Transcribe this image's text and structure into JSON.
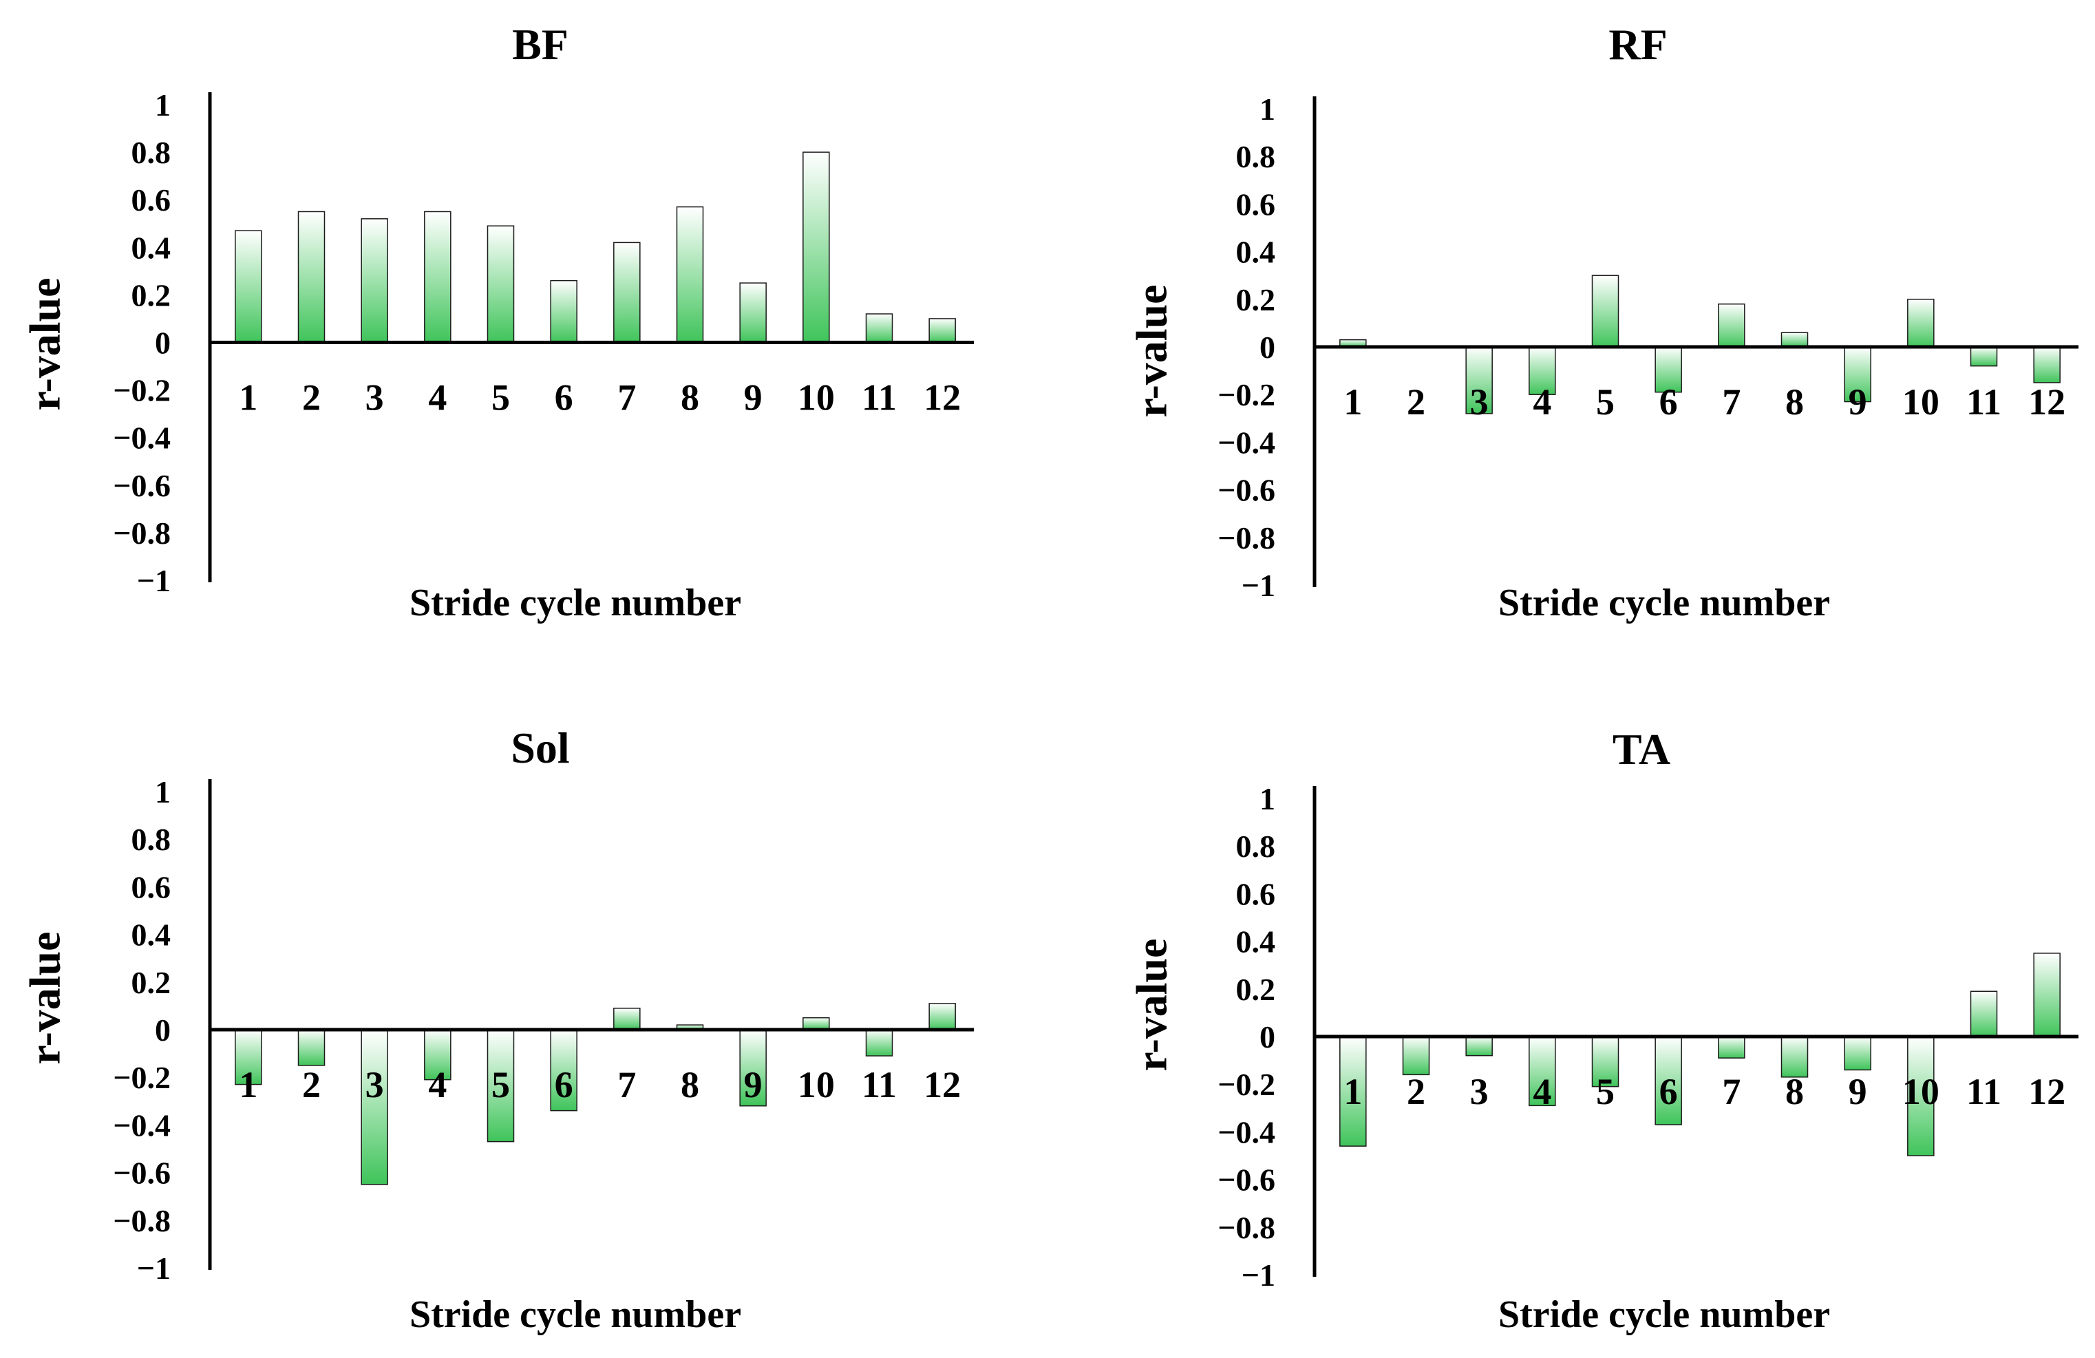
{
  "figure": {
    "bar_fill_top": "#ffffff",
    "bar_fill_bottom": "#3fc45a",
    "axis_color": "#000000"
  },
  "chart_data": [
    {
      "type": "bar",
      "title": "BF",
      "xlabel": "Stride cycle number",
      "ylabel": "r-value",
      "ylim": [
        -1,
        1
      ],
      "yticks": [
        "1",
        "0.8",
        "0.6",
        "0.4",
        "0.2",
        "0",
        "−0.2",
        "−0.4",
        "−0.6",
        "−0.8",
        "−1"
      ],
      "categories": [
        "1",
        "2",
        "3",
        "4",
        "5",
        "6",
        "7",
        "8",
        "9",
        "10",
        "11",
        "12"
      ],
      "values": [
        0.47,
        0.55,
        0.52,
        0.55,
        0.49,
        0.26,
        0.42,
        0.57,
        0.25,
        0.8,
        0.12,
        0.1
      ]
    },
    {
      "type": "bar",
      "title": "RF",
      "xlabel": "Stride cycle number",
      "ylabel": "r-value",
      "ylim": [
        -1,
        1
      ],
      "yticks": [
        "1",
        "0.8",
        "0.6",
        "0.4",
        "0.2",
        "0",
        "−0.2",
        "−0.4",
        "−0.6",
        "−0.8",
        "−1"
      ],
      "categories": [
        "1",
        "2",
        "3",
        "4",
        "5",
        "6",
        "7",
        "8",
        "9",
        "10",
        "11",
        "12"
      ],
      "values": [
        0.03,
        0.0,
        -0.28,
        -0.2,
        0.3,
        -0.19,
        0.18,
        0.06,
        -0.23,
        0.2,
        -0.08,
        -0.15
      ]
    },
    {
      "type": "bar",
      "title": "Sol",
      "xlabel": "Stride cycle number",
      "ylabel": "r-value",
      "ylim": [
        -1,
        1
      ],
      "yticks": [
        "1",
        "0.8",
        "0.6",
        "0.4",
        "0.2",
        "0",
        "−0.2",
        "−0.4",
        "−0.6",
        "−0.8",
        "−1"
      ],
      "categories": [
        "1",
        "2",
        "3",
        "4",
        "5",
        "6",
        "7",
        "8",
        "9",
        "10",
        "11",
        "12"
      ],
      "values": [
        -0.23,
        -0.15,
        -0.65,
        -0.21,
        -0.47,
        -0.34,
        0.09,
        0.02,
        -0.32,
        0.05,
        -0.11,
        0.11
      ]
    },
    {
      "type": "bar",
      "title": "TA",
      "xlabel": "Stride cycle number",
      "ylabel": "r-value",
      "ylim": [
        -1,
        1
      ],
      "yticks": [
        "1",
        "0.8",
        "0.6",
        "0.4",
        "0.2",
        "0",
        "−0.2",
        "−0.4",
        "−0.6",
        "−0.8",
        "−1"
      ],
      "categories": [
        "1",
        "2",
        "3",
        "4",
        "5",
        "6",
        "7",
        "8",
        "9",
        "10",
        "11",
        "12"
      ],
      "values": [
        -0.46,
        -0.16,
        -0.08,
        -0.29,
        -0.21,
        -0.37,
        -0.09,
        -0.17,
        -0.14,
        -0.5,
        0.19,
        0.35
      ]
    }
  ]
}
